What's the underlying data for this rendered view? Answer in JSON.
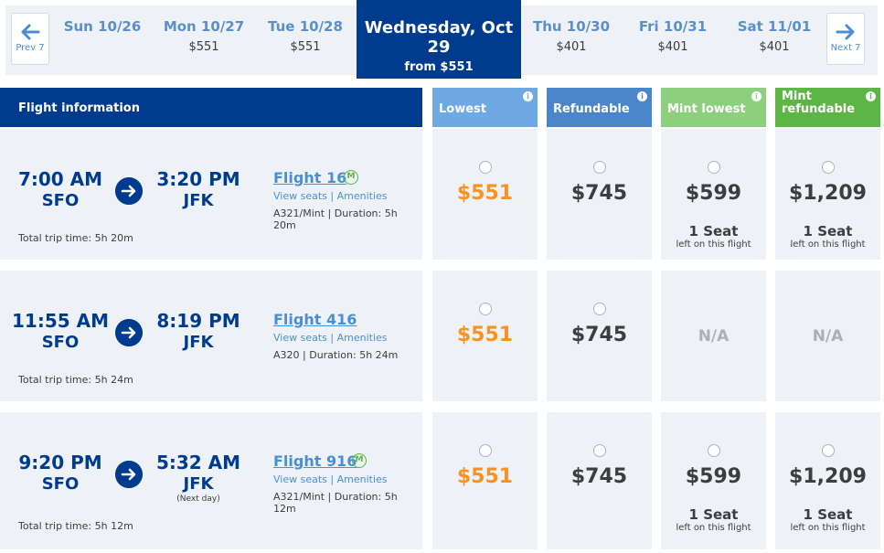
{
  "datebar": {
    "prev_label": "Prev 7",
    "next_label": "Next 7",
    "days": [
      {
        "name": "Sun 10/26",
        "price": ""
      },
      {
        "name": "Mon 10/27",
        "price": "$551"
      },
      {
        "name": "Tue 10/28",
        "price": "$551"
      },
      {
        "name": "Thu 10/30",
        "price": "$401"
      },
      {
        "name": "Fri 10/31",
        "price": "$401"
      },
      {
        "name": "Sat 11/01",
        "price": "$401"
      }
    ],
    "selected": {
      "name": "Wednesday, Oct 29",
      "price": "from $551"
    }
  },
  "header": {
    "flight_info": "Flight information",
    "fares": [
      {
        "label": "Lowest",
        "info": "i"
      },
      {
        "label": "Refundable",
        "info": "i"
      },
      {
        "label": "Mint lowest",
        "info": "i"
      },
      {
        "label": "Mint refundable",
        "info": "i"
      }
    ]
  },
  "flights": [
    {
      "depart_time": "7:00 AM",
      "depart_airport": "SFO",
      "arrive_time": "3:20 PM",
      "arrive_airport": "JFK",
      "next_day": "",
      "flight": "Flight 16",
      "mint": "M",
      "view_seats": "View seats",
      "separator": "|",
      "amenities": "Amenities",
      "aircraft": "A321/Mint | Duration: 5h 20m",
      "total": "Total trip time: 5h 20m",
      "fares": {
        "lowest": "$551",
        "refundable": "$745",
        "mint_lowest": "$599",
        "mint_lowest_seat": "1 Seat",
        "mint_lowest_seat_sub": "left on this flight",
        "mint_refundable": "$1,209",
        "mint_refundable_seat": "1 Seat",
        "mint_refundable_seat_sub": "left on this flight"
      }
    },
    {
      "depart_time": "11:55 AM",
      "depart_airport": "SFO",
      "arrive_time": "8:19 PM",
      "arrive_airport": "JFK",
      "next_day": "",
      "flight": "Flight 416",
      "mint": "",
      "view_seats": "View seats",
      "separator": "|",
      "amenities": "Amenities",
      "aircraft": "A320 | Duration: 5h 24m",
      "total": "Total trip time: 5h 24m",
      "fares": {
        "lowest": "$551",
        "refundable": "$745",
        "mint_lowest": "N/A",
        "mint_lowest_seat": "",
        "mint_lowest_seat_sub": "",
        "mint_refundable": "N/A",
        "mint_refundable_seat": "",
        "mint_refundable_seat_sub": ""
      }
    },
    {
      "depart_time": "9:20 PM",
      "depart_airport": "SFO",
      "arrive_time": "5:32 AM",
      "arrive_airport": "JFK",
      "next_day": "(Next day)",
      "flight": "Flight 916",
      "mint": "M",
      "view_seats": "View seats",
      "separator": "|",
      "amenities": "Amenities",
      "aircraft": "A321/Mint | Duration: 5h 12m",
      "total": "Total trip time: 5h 12m",
      "fares": {
        "lowest": "$551",
        "refundable": "$745",
        "mint_lowest": "$599",
        "mint_lowest_seat": "1 Seat",
        "mint_lowest_seat_sub": "left on this flight",
        "mint_refundable": "$1,209",
        "mint_refundable_seat": "1 Seat",
        "mint_refundable_seat_sub": "left on this flight"
      }
    }
  ],
  "colors": {
    "brand_blue": "#003b8e",
    "link_blue": "#4a8fd4",
    "lowest_orange": "#f7931e",
    "mint_green": "#5cb545"
  }
}
